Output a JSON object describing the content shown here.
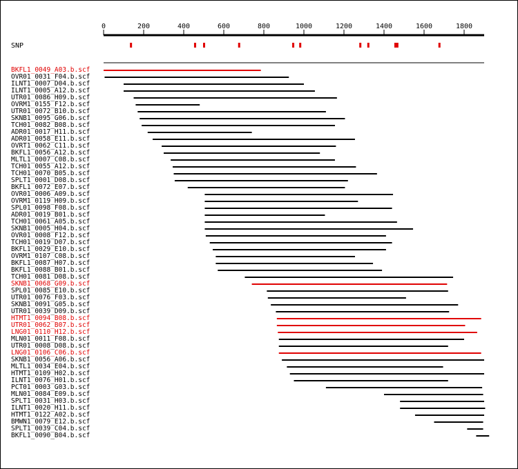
{
  "axis": {
    "min": 0,
    "max": 1900,
    "ticks": [
      0,
      200,
      400,
      600,
      800,
      1000,
      1200,
      1400,
      1600,
      1800
    ]
  },
  "snp_label": "SNP",
  "snp_positions": [
    135,
    455,
    500,
    675,
    945,
    980,
    1280,
    1320,
    1455,
    1465,
    1675
  ],
  "colors": {
    "read": "#000000",
    "highlight": "#e00000",
    "snp": "#e00000"
  },
  "reads": [
    {
      "name": "BKFL1_0049_A03.b.scf",
      "start": 0,
      "end": 785,
      "highlight": true
    },
    {
      "name": "OVR01_0031_F04.b.scf",
      "start": 5,
      "end": 925,
      "highlight": false
    },
    {
      "name": "ILNT1_0007_D04.b.scf",
      "start": 100,
      "end": 1000,
      "highlight": false
    },
    {
      "name": "ILNT1_0005_A12.b.scf",
      "start": 100,
      "end": 1055,
      "highlight": false
    },
    {
      "name": "UTR01_0086_H09.b.scf",
      "start": 150,
      "end": 1165,
      "highlight": false
    },
    {
      "name": "OVRM1_0155_F12.b.scf",
      "start": 160,
      "end": 480,
      "highlight": false
    },
    {
      "name": "UTR01_0072_B10.b.scf",
      "start": 170,
      "end": 1110,
      "highlight": false
    },
    {
      "name": "SKNB1_0095_G06.b.scf",
      "start": 180,
      "end": 1205,
      "highlight": false
    },
    {
      "name": "TCH01_0082_B08.b.scf",
      "start": 190,
      "end": 1155,
      "highlight": false
    },
    {
      "name": "ADR01_0017_H11.b.scf",
      "start": 220,
      "end": 740,
      "highlight": false
    },
    {
      "name": "ADR01_0058_E11.b.scf",
      "start": 245,
      "end": 1255,
      "highlight": false
    },
    {
      "name": "OVRT1_0062_C11.b.scf",
      "start": 290,
      "end": 1160,
      "highlight": false
    },
    {
      "name": "BKFL1_0056_A12.b.scf",
      "start": 300,
      "end": 1080,
      "highlight": false
    },
    {
      "name": "MLTL1_0007_C08.b.scf",
      "start": 335,
      "end": 1155,
      "highlight": false
    },
    {
      "name": "TCH01_0055_A12.b.scf",
      "start": 345,
      "end": 1260,
      "highlight": false
    },
    {
      "name": "TCH01_0070_B05.b.scf",
      "start": 350,
      "end": 1365,
      "highlight": false
    },
    {
      "name": "SPLT1_0001_D08.b.scf",
      "start": 355,
      "end": 1220,
      "highlight": false
    },
    {
      "name": "BKFL1_0072_E07.b.scf",
      "start": 420,
      "end": 1205,
      "highlight": false
    },
    {
      "name": "OVR01_0006_A09.b.scf",
      "start": 505,
      "end": 1445,
      "highlight": false
    },
    {
      "name": "OVRM1_0119_H09.b.scf",
      "start": 505,
      "end": 1270,
      "highlight": false
    },
    {
      "name": "SPL01_0098_F08.b.scf",
      "start": 505,
      "end": 1440,
      "highlight": false
    },
    {
      "name": "ADR01_0019_B01.b.scf",
      "start": 505,
      "end": 1105,
      "highlight": false
    },
    {
      "name": "TCH01_0061_A05.b.scf",
      "start": 505,
      "end": 1465,
      "highlight": false
    },
    {
      "name": "SKNB1_0005_H04.b.scf",
      "start": 505,
      "end": 1545,
      "highlight": false
    },
    {
      "name": "OVR01_0008_F12.b.scf",
      "start": 510,
      "end": 1410,
      "highlight": false
    },
    {
      "name": "TCH01_0019_D07.b.scf",
      "start": 530,
      "end": 1440,
      "highlight": false
    },
    {
      "name": "BKFL1_0029_E10.b.scf",
      "start": 545,
      "end": 1410,
      "highlight": false
    },
    {
      "name": "OVRM1_0107_C08.b.scf",
      "start": 560,
      "end": 1255,
      "highlight": false
    },
    {
      "name": "BKFL1_0087_H07.b.scf",
      "start": 560,
      "end": 1345,
      "highlight": false
    },
    {
      "name": "BKFL1_0088_B01.b.scf",
      "start": 570,
      "end": 1390,
      "highlight": false
    },
    {
      "name": "TCH01_0081_D08.b.scf",
      "start": 705,
      "end": 1745,
      "highlight": false
    },
    {
      "name": "SKNB1_0068_G09.b.scf",
      "start": 740,
      "end": 1715,
      "highlight": true
    },
    {
      "name": "SPL01_0085_E10.b.scf",
      "start": 815,
      "end": 1720,
      "highlight": false
    },
    {
      "name": "UTR01_0076_F03.b.scf",
      "start": 820,
      "end": 1510,
      "highlight": false
    },
    {
      "name": "SKNB1_0091_G05.b.scf",
      "start": 835,
      "end": 1770,
      "highlight": false
    },
    {
      "name": "UTR01_0039_D09.b.scf",
      "start": 860,
      "end": 1725,
      "highlight": false
    },
    {
      "name": "HTMT1_0094_B08.b.scf",
      "start": 865,
      "end": 1885,
      "highlight": true
    },
    {
      "name": "UTR01_0062_B07.b.scf",
      "start": 865,
      "end": 1805,
      "highlight": true
    },
    {
      "name": "LNG01_0110_H12.b.scf",
      "start": 870,
      "end": 1865,
      "highlight": true
    },
    {
      "name": "MLN01_0011_F08.b.scf",
      "start": 875,
      "end": 1800,
      "highlight": false
    },
    {
      "name": "UTR01_0008_D08.b.scf",
      "start": 875,
      "end": 1720,
      "highlight": false
    },
    {
      "name": "LNG01_0106_C06.b.scf",
      "start": 875,
      "end": 1885,
      "highlight": true
    },
    {
      "name": "SKNB1_0056_A06.b.scf",
      "start": 890,
      "end": 1900,
      "highlight": false
    },
    {
      "name": "MLTL1_0034_E04.b.scf",
      "start": 915,
      "end": 1695,
      "highlight": false
    },
    {
      "name": "HTMT1_0109_H02.b.scf",
      "start": 930,
      "end": 1900,
      "highlight": false
    },
    {
      "name": "ILNT1_0076_H01.b.scf",
      "start": 950,
      "end": 1720,
      "highlight": false
    },
    {
      "name": "PCT01_0003_G03.b.scf",
      "start": 1110,
      "end": 1890,
      "highlight": false
    },
    {
      "name": "MLN01_0084_E09.b.scf",
      "start": 1400,
      "end": 1895,
      "highlight": false
    },
    {
      "name": "SPLT1_0031_H03.b.scf",
      "start": 1480,
      "end": 1900,
      "highlight": false
    },
    {
      "name": "ILNT1_0020_H11.b.scf",
      "start": 1480,
      "end": 1905,
      "highlight": false
    },
    {
      "name": "HTMT1_0122_A02.b.scf",
      "start": 1555,
      "end": 1900,
      "highlight": false
    },
    {
      "name": "BMWN1_0079_E12.b.scf",
      "start": 1650,
      "end": 1895,
      "highlight": false
    },
    {
      "name": "SPLT1_0039_C04.b.scf",
      "start": 1815,
      "end": 1895,
      "highlight": false
    },
    {
      "name": "BKFL1_0090_B04.b.scf",
      "start": 1860,
      "end": 1925,
      "highlight": false
    }
  ]
}
